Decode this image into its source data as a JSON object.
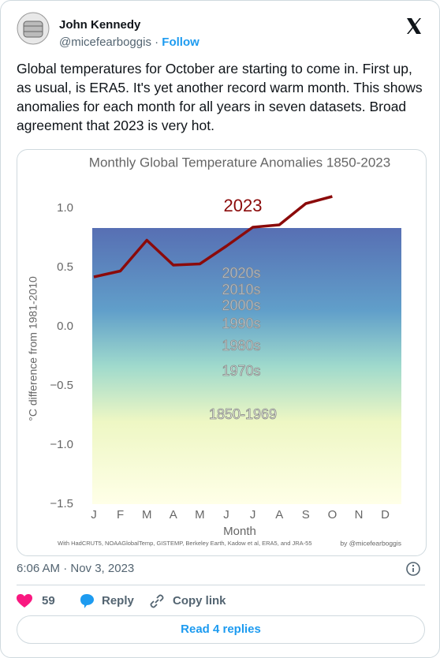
{
  "tweet": {
    "name": "John Kennedy",
    "handle": "@micefearboggis",
    "separator": "·",
    "follow": "Follow",
    "text": "Global temperatures for October are starting to come in. First up, as usual, is ERA5. It's yet another record warm month. This shows anomalies for each month for all years in seven datasets. Broad agreement that 2023 is very hot.",
    "timestamp": "6:06 AM · Nov 3, 2023",
    "likes": "59",
    "reply": "Reply",
    "copy_link": "Copy link",
    "read_replies": "Read 4 replies"
  },
  "chart_data": {
    "type": "line",
    "title": "Monthly Global Temperature Anomalies 1850-2023",
    "xlabel": "Month",
    "ylabel": "°C difference from 1981-2010",
    "categories": [
      "J",
      "F",
      "M",
      "A",
      "M",
      "J",
      "J",
      "A",
      "S",
      "O",
      "N",
      "D"
    ],
    "series": [
      {
        "name": "2023",
        "color": "#8b0a0a",
        "values": [
          0.42,
          0.47,
          0.73,
          0.52,
          0.53,
          0.68,
          0.84,
          0.86,
          1.04,
          1.1,
          null,
          null
        ]
      }
    ],
    "ylim": [
      -1.5,
      1.25
    ],
    "yticks": [
      {
        "value": 1,
        "label": "1.0"
      },
      0.5,
      {
        "value": 0,
        "label": "0.0"
      },
      {
        "value": -0.5,
        "label": "−0.5"
      },
      {
        "value": -1,
        "label": "−1.0"
      },
      {
        "value": -1.5,
        "label": "−1.5"
      }
    ],
    "grid": false,
    "annotations": [
      "2020s",
      "2010s",
      "2000s",
      "1990s",
      "1980s",
      "1970s",
      "1850-1969"
    ],
    "source": "With HadCRUT5, NOAAGlobalTemp, GISTEMP, Berkeley Earth, Kadow et al, ERA5, and JRA-55",
    "credit": "by @micefearboggis"
  }
}
